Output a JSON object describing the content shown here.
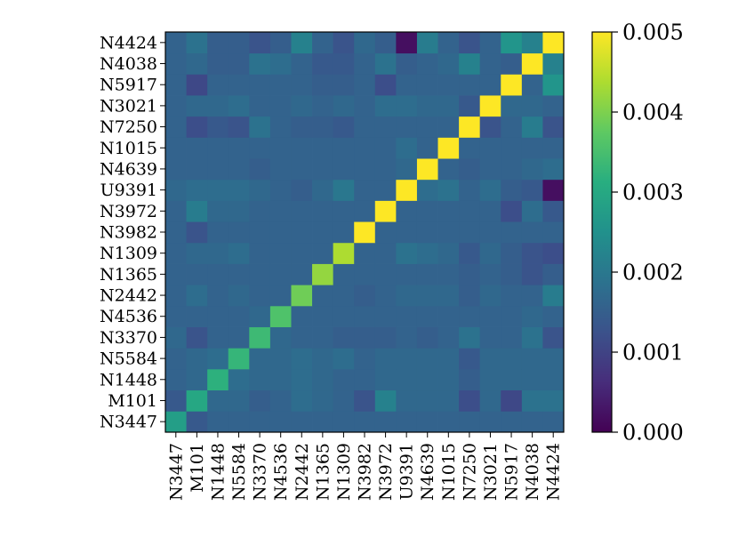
{
  "chart_data": {
    "type": "heatmap",
    "title": "",
    "xlabel": "",
    "ylabel": "",
    "x_labels": [
      "N3447",
      "M101",
      "N1448",
      "N5584",
      "N3370",
      "N4536",
      "N2442",
      "N1365",
      "N1309",
      "N3982",
      "N3972",
      "U9391",
      "N4639",
      "N1015",
      "N7250",
      "N3021",
      "N5917",
      "N4038",
      "N4424"
    ],
    "y_labels": [
      "N3447",
      "M101",
      "N1448",
      "N5584",
      "N3370",
      "N4536",
      "N2442",
      "N1365",
      "N1309",
      "N3982",
      "N3972",
      "U9391",
      "N4639",
      "N1015",
      "N7250",
      "N3021",
      "N5917",
      "N4038",
      "N4424"
    ],
    "colorbar": {
      "range": [
        0,
        0.005
      ],
      "ticks": [
        0.0,
        0.001,
        0.002,
        0.003,
        0.004,
        0.005
      ],
      "tick_labels": [
        "0.000",
        "0.001",
        "0.002",
        "0.003",
        "0.004",
        "0.005"
      ],
      "colormap": "viridis"
    },
    "diagonal": [
      0.0028,
      0.003,
      0.0032,
      0.0033,
      0.0034,
      0.0036,
      0.0039,
      0.0042,
      0.0044,
      0.005,
      0.005,
      0.005,
      0.005,
      0.005,
      0.005,
      0.005,
      0.005,
      0.005,
      0.005
    ],
    "values": [
      [
        0.0028,
        0.0014,
        0.0016,
        0.0016,
        0.0016,
        0.0016,
        0.0016,
        0.0016,
        0.0016,
        0.0016,
        0.0016,
        0.0016,
        0.0016,
        0.0016,
        0.0016,
        0.0016,
        0.0016,
        0.0016,
        0.0016
      ],
      [
        0.0014,
        0.003,
        0.0017,
        0.0017,
        0.0015,
        0.0016,
        0.0018,
        0.0017,
        0.0016,
        0.0013,
        0.0022,
        0.0017,
        0.0017,
        0.0017,
        0.0012,
        0.0017,
        0.0011,
        0.0019,
        0.0019
      ],
      [
        0.0016,
        0.0017,
        0.0032,
        0.0018,
        0.0017,
        0.0017,
        0.0018,
        0.0017,
        0.0016,
        0.0016,
        0.0017,
        0.0017,
        0.0017,
        0.0017,
        0.0015,
        0.0017,
        0.0017,
        0.0017,
        0.0017
      ],
      [
        0.0016,
        0.0017,
        0.0018,
        0.0033,
        0.0017,
        0.0017,
        0.0018,
        0.0017,
        0.0018,
        0.0016,
        0.0017,
        0.0017,
        0.0017,
        0.0017,
        0.0014,
        0.0017,
        0.0017,
        0.0017,
        0.0017
      ],
      [
        0.0017,
        0.0013,
        0.0016,
        0.0016,
        0.0034,
        0.0017,
        0.0016,
        0.0016,
        0.0015,
        0.0015,
        0.0015,
        0.0016,
        0.0015,
        0.0016,
        0.0019,
        0.0016,
        0.0016,
        0.0019,
        0.0013
      ],
      [
        0.0016,
        0.0016,
        0.0016,
        0.0016,
        0.0017,
        0.0036,
        0.0016,
        0.0016,
        0.0016,
        0.0016,
        0.0016,
        0.0016,
        0.0016,
        0.0016,
        0.0016,
        0.0016,
        0.0016,
        0.0017,
        0.0016
      ],
      [
        0.0016,
        0.0018,
        0.0016,
        0.0017,
        0.0016,
        0.0016,
        0.0039,
        0.0016,
        0.0016,
        0.0015,
        0.0016,
        0.0017,
        0.0017,
        0.0017,
        0.0015,
        0.0017,
        0.0016,
        0.0016,
        0.0021
      ],
      [
        0.0016,
        0.0016,
        0.0016,
        0.0016,
        0.0016,
        0.0016,
        0.0016,
        0.0042,
        0.0016,
        0.0016,
        0.0016,
        0.0016,
        0.0016,
        0.0016,
        0.0015,
        0.0016,
        0.0015,
        0.0013,
        0.0015
      ],
      [
        0.0016,
        0.0017,
        0.0017,
        0.0018,
        0.0016,
        0.0016,
        0.0016,
        0.0016,
        0.0044,
        0.0016,
        0.0016,
        0.0019,
        0.0018,
        0.0017,
        0.0014,
        0.0017,
        0.0015,
        0.0013,
        0.0012
      ],
      [
        0.0016,
        0.0013,
        0.0016,
        0.0016,
        0.0016,
        0.0016,
        0.0016,
        0.0016,
        0.0016,
        0.005,
        0.0016,
        0.0016,
        0.0016,
        0.0016,
        0.0016,
        0.0016,
        0.0016,
        0.0016,
        0.0016
      ],
      [
        0.0016,
        0.0021,
        0.0017,
        0.0017,
        0.0016,
        0.0016,
        0.0016,
        0.0016,
        0.0016,
        0.0016,
        0.005,
        0.0016,
        0.0016,
        0.0016,
        0.0016,
        0.0016,
        0.0012,
        0.0018,
        0.0014
      ],
      [
        0.0017,
        0.0018,
        0.0018,
        0.0018,
        0.0017,
        0.0016,
        0.0015,
        0.0017,
        0.002,
        0.0016,
        0.0016,
        0.005,
        0.0018,
        0.0019,
        0.0016,
        0.0018,
        0.0015,
        0.0014,
        0.0002
      ],
      [
        0.0016,
        0.0016,
        0.0016,
        0.0016,
        0.0015,
        0.0016,
        0.0016,
        0.0016,
        0.0016,
        0.0016,
        0.0016,
        0.0017,
        0.005,
        0.0016,
        0.0015,
        0.0016,
        0.0016,
        0.0017,
        0.0018
      ],
      [
        0.0016,
        0.0016,
        0.0016,
        0.0016,
        0.0016,
        0.0016,
        0.0016,
        0.0016,
        0.0016,
        0.0016,
        0.0016,
        0.0018,
        0.0016,
        0.005,
        0.0016,
        0.0016,
        0.0016,
        0.0016,
        0.0016
      ],
      [
        0.0016,
        0.0012,
        0.0014,
        0.0013,
        0.0019,
        0.0016,
        0.0015,
        0.0015,
        0.0014,
        0.0016,
        0.0016,
        0.0016,
        0.0016,
        0.0016,
        0.005,
        0.0013,
        0.0016,
        0.0021,
        0.0013
      ],
      [
        0.0016,
        0.0017,
        0.0017,
        0.0018,
        0.0016,
        0.0016,
        0.0017,
        0.0016,
        0.0017,
        0.0016,
        0.0018,
        0.0018,
        0.0017,
        0.0017,
        0.0014,
        0.005,
        0.0017,
        0.0017,
        0.0016
      ],
      [
        0.0016,
        0.0011,
        0.0016,
        0.0016,
        0.0016,
        0.0016,
        0.0016,
        0.0015,
        0.0015,
        0.0016,
        0.0012,
        0.0016,
        0.0016,
        0.0016,
        0.0016,
        0.0016,
        0.005,
        0.0016,
        0.0026
      ],
      [
        0.0016,
        0.0017,
        0.0015,
        0.0015,
        0.0019,
        0.0018,
        0.0016,
        0.0014,
        0.0014,
        0.0016,
        0.0019,
        0.0015,
        0.0016,
        0.0017,
        0.0022,
        0.0016,
        0.0015,
        0.005,
        0.0022
      ],
      [
        0.0016,
        0.0019,
        0.0015,
        0.0015,
        0.0013,
        0.0015,
        0.0022,
        0.0016,
        0.0013,
        0.0017,
        0.0015,
        0.0002,
        0.0021,
        0.0016,
        0.0013,
        0.0016,
        0.0026,
        0.0022,
        0.005
      ]
    ]
  }
}
